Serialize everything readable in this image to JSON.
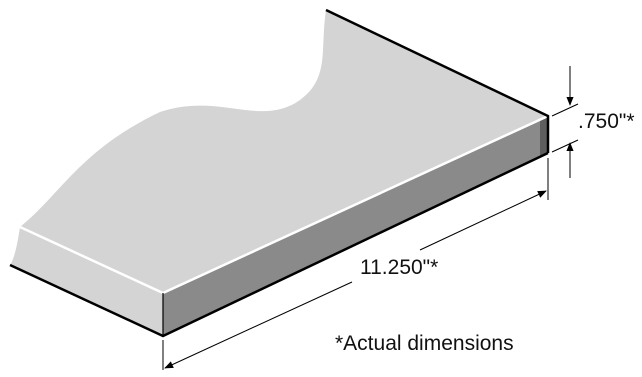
{
  "dimensions": {
    "thickness_label": ".750\"*",
    "length_label": "11.250\"*"
  },
  "footnote": "*Actual dimensions",
  "colors": {
    "top_face": "#d4d4d4",
    "front_face": "#8a8a8a",
    "side_face": "#5e5e5e",
    "edge_highlight": "#ffffff",
    "outline": "#000000",
    "dimension_line": "#000000"
  }
}
